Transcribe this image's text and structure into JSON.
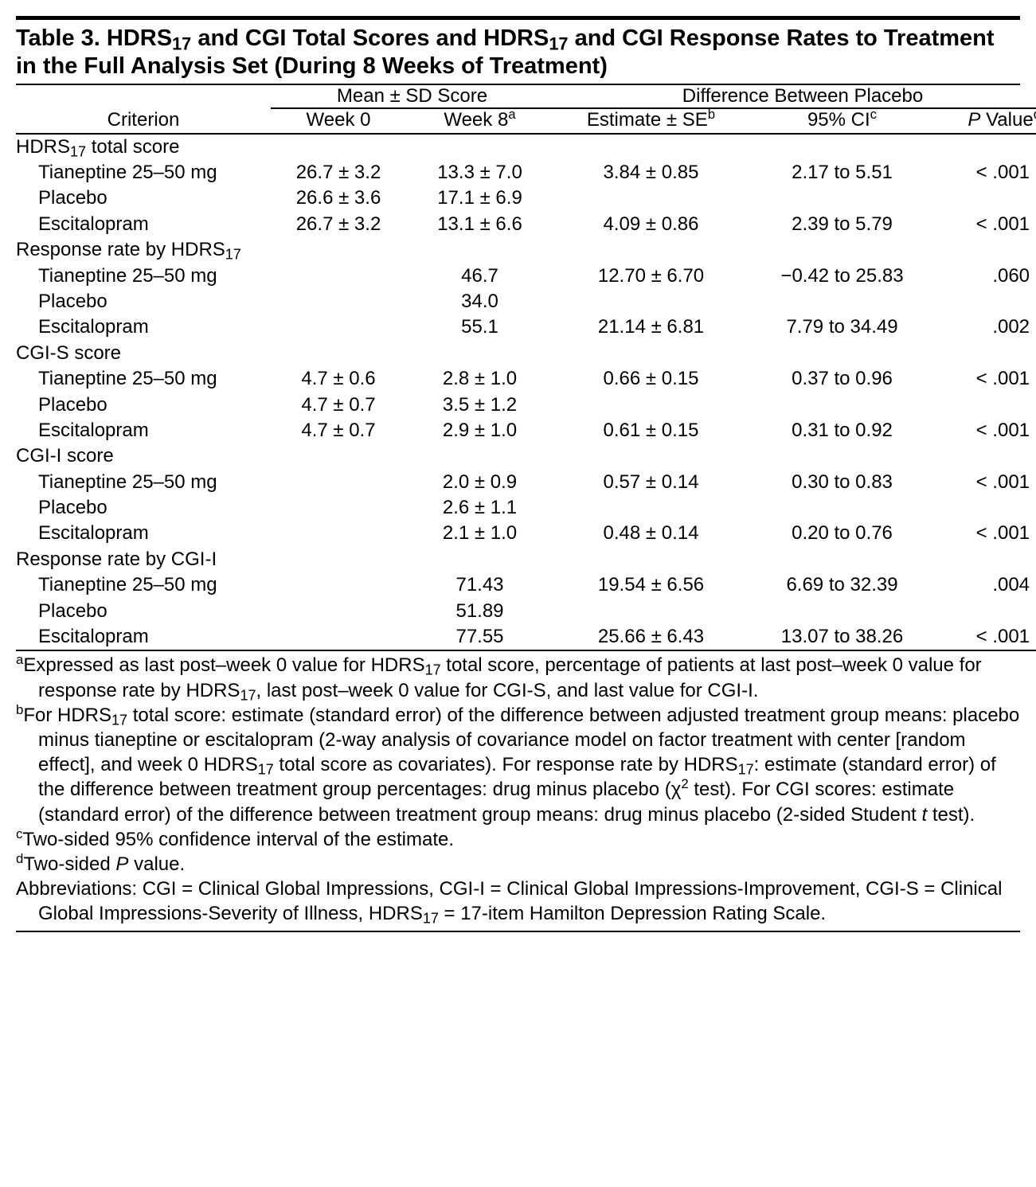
{
  "title_html": "Table 3. HDRS<sub>17</sub> and CGI Total Scores and HDRS<sub>17</sub> and CGI Response Rates to Treatment in the Full Analysis Set (During 8 Weeks of Treatment)",
  "headers": {
    "criterion": "Criterion",
    "mean_sd": "Mean ± SD Score",
    "diff_placebo": "Difference Between Placebo",
    "week0": "Week 0",
    "week8_html": "Week 8<sup>a</sup>",
    "estimate_html": "Estimate ± SE<sup>b</sup>",
    "ci_html": "95% CI<sup>c</sup>",
    "pvalue_html": "<span class=\"ital\">P</span> Value<sup>d</sup>"
  },
  "sections": [
    {
      "label_html": "HDRS<sub>17</sub> total score",
      "rows": [
        {
          "name": "Tianeptine 25–50 mg",
          "w0": "26.7 ± 3.2",
          "w8": "13.3 ± 7.0",
          "est": "3.84 ± 0.85",
          "ci": "2.17 to 5.51",
          "p": "< .001"
        },
        {
          "name": "Placebo",
          "w0": "26.6 ± 3.6",
          "w8": "17.1 ± 6.9",
          "est": "",
          "ci": "",
          "p": ""
        },
        {
          "name": "Escitalopram",
          "w0": "26.7 ± 3.2",
          "w8": "13.1 ± 6.6",
          "est": "4.09 ± 0.86",
          "ci": "2.39 to 5.79",
          "p": "< .001"
        }
      ]
    },
    {
      "label_html": "Response rate by HDRS<sub>17</sub>",
      "rows": [
        {
          "name": "Tianeptine 25–50 mg",
          "w0": "",
          "w8": "46.7",
          "est": "12.70 ± 6.70",
          "ci": "−0.42 to 25.83",
          "p": ".060"
        },
        {
          "name": "Placebo",
          "w0": "",
          "w8": "34.0",
          "est": "",
          "ci": "",
          "p": ""
        },
        {
          "name": "Escitalopram",
          "w0": "",
          "w8": "55.1",
          "est": "21.14 ± 6.81",
          "ci": "7.79 to 34.49",
          "p": ".002"
        }
      ]
    },
    {
      "label_html": "CGI-S score",
      "rows": [
        {
          "name": "Tianeptine 25–50 mg",
          "w0": "4.7 ± 0.6",
          "w8": "2.8 ± 1.0",
          "est": "0.66 ± 0.15",
          "ci": "0.37 to 0.96",
          "p": "< .001"
        },
        {
          "name": "Placebo",
          "w0": "4.7 ± 0.7",
          "w8": "3.5 ± 1.2",
          "est": "",
          "ci": "",
          "p": ""
        },
        {
          "name": "Escitalopram",
          "w0": "4.7 ± 0.7",
          "w8": "2.9 ± 1.0",
          "est": "0.61 ± 0.15",
          "ci": "0.31 to 0.92",
          "p": "< .001"
        }
      ]
    },
    {
      "label_html": "CGI-I score",
      "rows": [
        {
          "name": "Tianeptine 25–50 mg",
          "w0": "",
          "w8": "2.0 ± 0.9",
          "est": "0.57 ± 0.14",
          "ci": "0.30 to 0.83",
          "p": "< .001"
        },
        {
          "name": "Placebo",
          "w0": "",
          "w8": "2.6 ± 1.1",
          "est": "",
          "ci": "",
          "p": ""
        },
        {
          "name": "Escitalopram",
          "w0": "",
          "w8": "2.1 ± 1.0",
          "est": "0.48 ± 0.14",
          "ci": "0.20 to 0.76",
          "p": "< .001"
        }
      ]
    },
    {
      "label_html": "Response rate by CGI-I",
      "rows": [
        {
          "name": "Tianeptine 25–50 mg",
          "w0": "",
          "w8": "71.43",
          "est": "19.54 ± 6.56",
          "ci": "6.69 to 32.39",
          "p": ".004"
        },
        {
          "name": "Placebo",
          "w0": "",
          "w8": "51.89",
          "est": "",
          "ci": "",
          "p": ""
        },
        {
          "name": "Escitalopram",
          "w0": "",
          "w8": "77.55",
          "est": "25.66 ± 6.43",
          "ci": "13.07 to 38.26",
          "p": "< .001"
        }
      ]
    }
  ],
  "footnotes": [
    "<sup>a</sup>Expressed as last post–week 0 value for HDRS<sub>17</sub> total score, percentage of patients at last post–week 0 value for response rate by HDRS<sub>17</sub>, last post–week 0 value for CGI-S, and last value for CGI-I.",
    "<sup>b</sup>For HDRS<sub>17</sub> total score: estimate (standard error) of the difference between adjusted treatment group means: placebo minus tianeptine or escitalopram (2-way analysis of covariance model on factor treatment with center [random effect], and week 0 HDRS<sub>17</sub> total score as covariates). For response rate by HDRS<sub>17</sub>: estimate (standard error) of the difference between treatment group percentages: drug minus placebo (χ<sup>2</sup> test). For CGI scores: estimate (standard error) of the difference between treatment group means: drug minus placebo (2-sided Student <span class=\"ital\">t</span> test).",
    "<sup>c</sup>Two-sided 95% confidence interval of the estimate.",
    "<sup>d</sup>Two-sided <span class=\"ital\">P</span> value.",
    "Abbreviations: CGI = Clinical Global Impressions, CGI-I = Clinical Global Impressions-Improvement, CGI-S = Clinical Global Impressions-Severity of Illness, HDRS<sub>17</sub> = 17-item Hamilton Depression Rating Scale."
  ]
}
